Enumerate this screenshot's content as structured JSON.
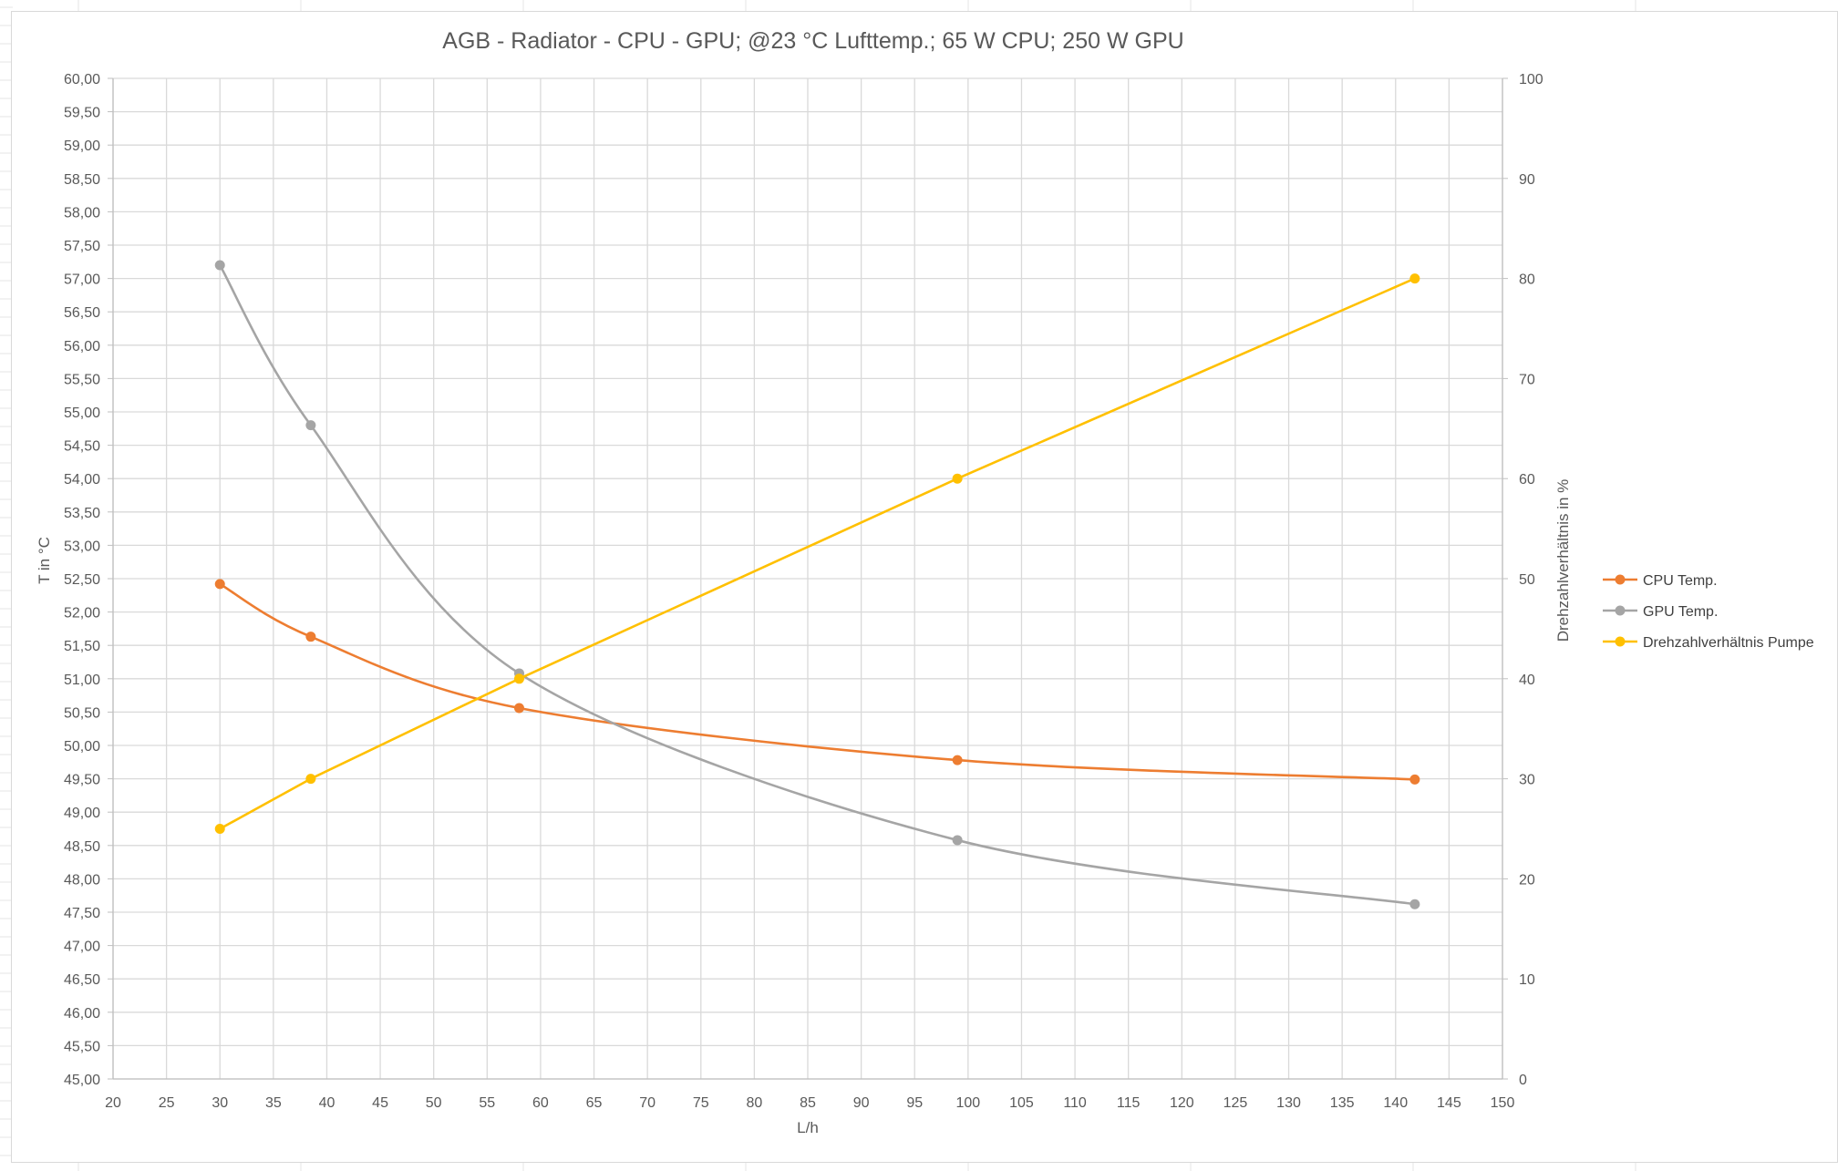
{
  "chart_data": {
    "type": "line",
    "title": "AGB - Radiator - CPU - GPU; @23 °C Lufttemp.; 65 W CPU; 250 W GPU",
    "xlabel": "L/h",
    "ylabel": "T in °C",
    "y2label": "Drehzahlverhältnis in %",
    "xlim": [
      20,
      150
    ],
    "ylim": [
      45,
      60
    ],
    "y2lim": [
      0,
      100
    ],
    "x_ticks": [
      "20",
      "25",
      "30",
      "35",
      "40",
      "45",
      "50",
      "55",
      "60",
      "65",
      "70",
      "75",
      "80",
      "85",
      "90",
      "95",
      "100",
      "105",
      "110",
      "115",
      "120",
      "125",
      "130",
      "135",
      "140",
      "145",
      "150"
    ],
    "y_ticks": [
      "45,00",
      "45,50",
      "46,00",
      "46,50",
      "47,00",
      "47,50",
      "48,00",
      "48,50",
      "49,00",
      "49,50",
      "50,00",
      "50,50",
      "51,00",
      "51,50",
      "52,00",
      "52,50",
      "53,00",
      "53,50",
      "54,00",
      "54,50",
      "55,00",
      "55,50",
      "56,00",
      "56,50",
      "57,00",
      "57,50",
      "58,00",
      "58,50",
      "59,00",
      "59,50",
      "60,00"
    ],
    "y2_ticks": [
      "0",
      "10",
      "20",
      "30",
      "40",
      "50",
      "60",
      "70",
      "80",
      "90",
      "100"
    ],
    "grid": true,
    "legend_position": "right",
    "series": [
      {
        "name": "CPU Temp.",
        "axis": "left",
        "color": "#ED7D31",
        "smooth": true,
        "x": [
          30,
          38.5,
          58,
          99,
          141.8
        ],
        "y": [
          52.42,
          51.63,
          50.56,
          49.78,
          49.49
        ]
      },
      {
        "name": "GPU Temp.",
        "axis": "left",
        "color": "#A5A5A5",
        "smooth": true,
        "x": [
          30,
          38.5,
          58,
          99,
          141.8
        ],
        "y": [
          57.2,
          54.8,
          51.08,
          48.58,
          47.62
        ]
      },
      {
        "name": "Drehzahlverhältnis Pumpe",
        "axis": "right",
        "color": "#FFC000",
        "smooth": false,
        "x": [
          30,
          38.5,
          58,
          99,
          141.8
        ],
        "y": [
          25,
          30,
          40,
          60,
          80
        ]
      }
    ]
  }
}
